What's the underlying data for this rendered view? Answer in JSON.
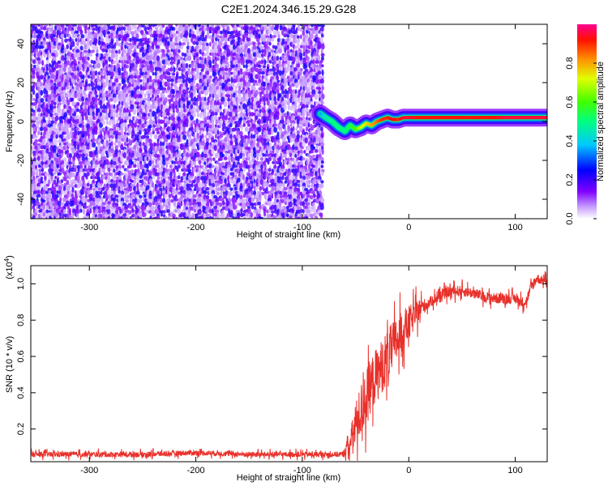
{
  "title": "C2E1.2024.346.15.29.G28",
  "chart_data": [
    {
      "type": "heatmap",
      "name": "spectrogram",
      "xlabel": "Height of straight line (km)",
      "ylabel": "Frequency (Hz)",
      "xlim": [
        -355,
        130
      ],
      "ylim": [
        -50,
        50
      ],
      "xticks": [
        -300,
        -200,
        -100,
        0,
        100
      ],
      "yticks": [
        -40,
        -20,
        0,
        20,
        40
      ],
      "colorbar": {
        "label": "Normalized spectral amplitude",
        "range": [
          0,
          1
        ],
        "ticks": [
          "0.0",
          "0.2",
          "0.4",
          "0.6",
          "0.8"
        ],
        "colormap": [
          "#ffffff",
          "#8000ff",
          "#0000ff",
          "#00ffff",
          "#00ff00",
          "#ffff00",
          "#ff8000",
          "#ff0000",
          "#ff00a0"
        ]
      },
      "noise_region": {
        "x_from": -355,
        "x_to": -80,
        "freq_from": -50,
        "freq_to": 50,
        "level": 0.15
      },
      "signal_track": {
        "x": [
          -83,
          -78,
          -72,
          -66,
          -60,
          -55,
          -50,
          -45,
          -40,
          -35,
          -30,
          -25,
          -20,
          -15,
          -10,
          -5,
          0,
          10,
          20,
          30,
          40,
          50,
          60,
          70,
          80,
          90,
          100,
          110,
          120,
          130
        ],
        "freq_hz": [
          4,
          2,
          0,
          -3,
          -5,
          -2,
          -4,
          -3,
          -1,
          -2,
          0,
          1,
          2,
          1,
          1,
          2,
          2,
          2,
          2,
          2,
          2,
          2,
          2,
          2,
          2,
          2,
          2,
          2,
          2,
          2
        ],
        "amplitude": [
          0.35,
          0.45,
          0.5,
          0.5,
          0.5,
          0.55,
          0.6,
          0.7,
          0.75,
          0.8,
          0.85,
          0.9,
          0.9,
          0.95,
          0.9,
          0.95,
          0.95,
          0.92,
          0.92,
          0.92,
          0.92,
          0.92,
          0.92,
          0.92,
          0.92,
          0.95,
          0.95,
          0.95,
          0.95,
          0.95
        ]
      }
    },
    {
      "type": "line",
      "name": "snr",
      "xlabel": "Height of straight line (km)",
      "ylabel": "SNR (10 * v/v)",
      "y_multiplier": "(x10",
      "y_multiplier_exp": "4",
      "y_multiplier_close": ")",
      "xlim": [
        -355,
        130
      ],
      "ylim": [
        0.02,
        1.1
      ],
      "xticks": [
        -300,
        -200,
        -100,
        0,
        100
      ],
      "yticks": [
        0.2,
        0.4,
        0.6,
        0.8,
        1.0
      ],
      "color": "#e8302a",
      "series": [
        {
          "x": [
            -355,
            -300,
            -250,
            -200,
            -150,
            -100,
            -75,
            -62,
            -55,
            -50,
            -45,
            -40,
            -35,
            -30,
            -25,
            -20,
            -15,
            -10,
            -5,
            0,
            5,
            10,
            15,
            20,
            25,
            30,
            35,
            40,
            50,
            60,
            70,
            80,
            90,
            100,
            105,
            110,
            115,
            120,
            125,
            130
          ],
          "values": [
            0.06,
            0.06,
            0.06,
            0.07,
            0.06,
            0.06,
            0.06,
            0.06,
            0.12,
            0.22,
            0.3,
            0.38,
            0.45,
            0.5,
            0.55,
            0.6,
            0.65,
            0.7,
            0.75,
            0.78,
            0.82,
            0.86,
            0.88,
            0.9,
            0.92,
            0.93,
            0.95,
            0.96,
            0.96,
            0.95,
            0.93,
            0.92,
            0.92,
            0.92,
            0.9,
            0.9,
            0.98,
            1.03,
            1.02,
            1.02
          ],
          "noise": [
            0.03,
            0.03,
            0.03,
            0.03,
            0.03,
            0.03,
            0.03,
            0.03,
            0.15,
            0.25,
            0.3,
            0.3,
            0.3,
            0.3,
            0.3,
            0.3,
            0.28,
            0.25,
            0.22,
            0.2,
            0.15,
            0.12,
            0.08,
            0.06,
            0.06,
            0.06,
            0.06,
            0.06,
            0.06,
            0.06,
            0.06,
            0.06,
            0.06,
            0.06,
            0.06,
            0.06,
            0.06,
            0.06,
            0.05,
            0.05
          ]
        }
      ]
    }
  ]
}
